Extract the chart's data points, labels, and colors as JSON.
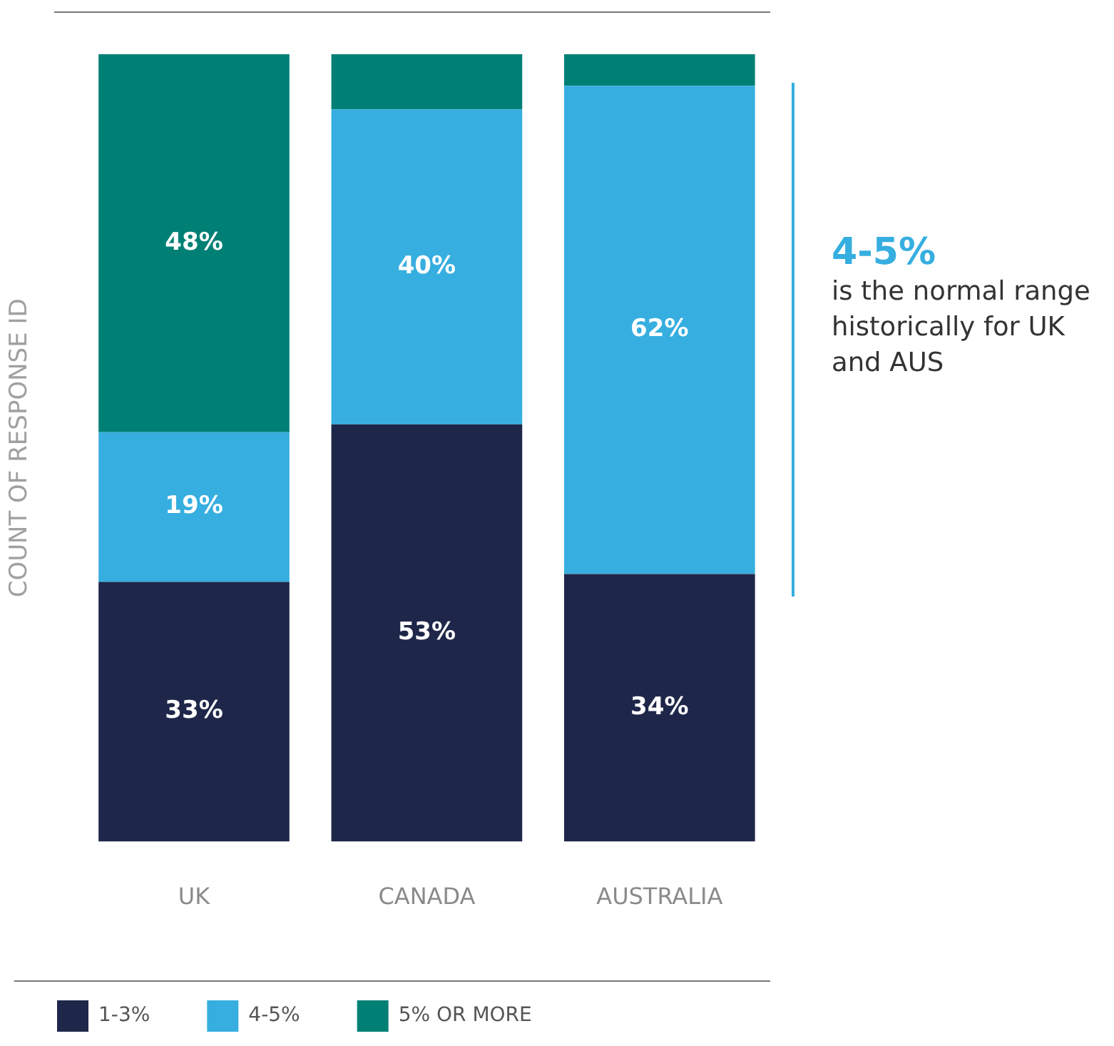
{
  "chart_data": {
    "type": "bar",
    "stacked": true,
    "ylabel": "COUNT OF RESPONSE ID",
    "categories": [
      "UK",
      "CANADA",
      "AUSTRALIA"
    ],
    "series": [
      {
        "name": "1-3%",
        "color": "#1e2749",
        "values": [
          33,
          53,
          34
        ],
        "value_labels": [
          "33%",
          "53%",
          "34%"
        ]
      },
      {
        "name": "4-5%",
        "color": "#36aee0",
        "values": [
          19,
          40,
          62
        ],
        "value_labels": [
          "19%",
          "40%",
          "62%"
        ]
      },
      {
        "name": "5% OR MORE",
        "color": "#008075",
        "values": [
          48,
          7,
          4
        ],
        "value_labels": [
          "48%",
          null,
          null
        ]
      }
    ],
    "legend": "bottom left",
    "grid": false,
    "annotations": [
      "4-5%",
      "is the normal range historically for UK and AUS"
    ]
  }
}
